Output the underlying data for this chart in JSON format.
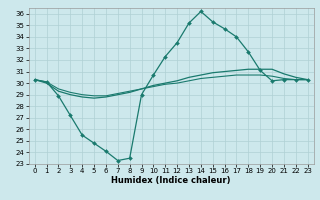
{
  "xlabel": "Humidex (Indice chaleur)",
  "xlim": [
    -0.5,
    23.5
  ],
  "ylim": [
    23,
    36.5
  ],
  "yticks": [
    23,
    24,
    25,
    26,
    27,
    28,
    29,
    30,
    31,
    32,
    33,
    34,
    35,
    36
  ],
  "xticks": [
    0,
    1,
    2,
    3,
    4,
    5,
    6,
    7,
    8,
    9,
    10,
    11,
    12,
    13,
    14,
    15,
    16,
    17,
    18,
    19,
    20,
    21,
    22,
    23
  ],
  "bg_color": "#cde8ec",
  "grid_color": "#b0d0d4",
  "line_color": "#1a7a6e",
  "line1_x": [
    0,
    1,
    2,
    3,
    4,
    5,
    6,
    7,
    8,
    9,
    10,
    11,
    12,
    13,
    14,
    15,
    16,
    17,
    18,
    19,
    20,
    21,
    22,
    23
  ],
  "line1_y": [
    30.3,
    30.1,
    28.9,
    27.2,
    25.5,
    24.8,
    24.1,
    23.3,
    23.5,
    29.0,
    30.7,
    32.3,
    33.5,
    35.2,
    36.2,
    35.3,
    34.7,
    34.0,
    32.7,
    31.1,
    30.2,
    30.3,
    30.3,
    30.3
  ],
  "line2_x": [
    0,
    1,
    2,
    3,
    4,
    5,
    6,
    7,
    8,
    9,
    10,
    11,
    12,
    13,
    14,
    15,
    16,
    17,
    18,
    19,
    20,
    21,
    22,
    23
  ],
  "line2_y": [
    30.3,
    30.0,
    29.3,
    29.0,
    28.8,
    28.7,
    28.8,
    29.0,
    29.2,
    29.5,
    29.8,
    30.0,
    30.2,
    30.5,
    30.7,
    30.9,
    31.0,
    31.1,
    31.2,
    31.2,
    31.2,
    30.8,
    30.5,
    30.3
  ],
  "line3_x": [
    0,
    1,
    2,
    3,
    4,
    5,
    6,
    7,
    8,
    9,
    10,
    11,
    12,
    13,
    14,
    15,
    16,
    17,
    18,
    19,
    20,
    21,
    22,
    23
  ],
  "line3_y": [
    30.3,
    30.1,
    29.5,
    29.2,
    29.0,
    28.9,
    28.9,
    29.1,
    29.3,
    29.5,
    29.7,
    29.9,
    30.0,
    30.2,
    30.4,
    30.5,
    30.6,
    30.7,
    30.7,
    30.7,
    30.6,
    30.4,
    30.3,
    30.3
  ],
  "tick_fontsize": 5,
  "xlabel_fontsize": 6
}
